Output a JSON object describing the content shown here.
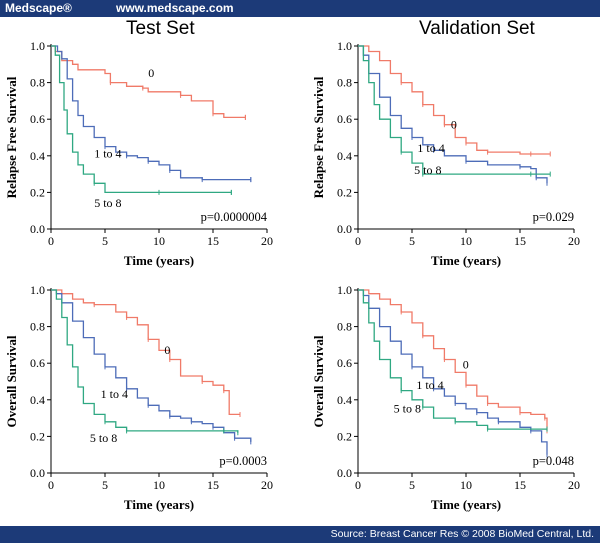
{
  "header": {
    "brand": "Medscape®",
    "site": "www.medscape.com"
  },
  "footer": {
    "source": "Source: Breast Cancer Res © 2008 BioMed Central, Ltd."
  },
  "columns": {
    "left": "Test Set",
    "right": "Validation Set"
  },
  "colors": {
    "header_bg": "#1c3a78",
    "group_0": "#f07a68",
    "group_1to4": "#4d6cb8",
    "group_5to8": "#2fa882"
  },
  "chart_data": [
    {
      "id": "test-rfs",
      "type": "line",
      "title": "Test Set",
      "xlabel": "Time (years)",
      "ylabel": "Relapse Free Survival",
      "xlim": [
        0,
        20
      ],
      "ylim": [
        0,
        1
      ],
      "xticks": [
        "0",
        "5",
        "10",
        "15",
        "20"
      ],
      "yticks": [
        "0.0",
        "0.2",
        "0.4",
        "0.6",
        "0.8",
        "1.0"
      ],
      "pvalue": "p=0.0000004",
      "series": [
        {
          "name": "0",
          "label_at": [
            9,
            0.83
          ],
          "points": [
            [
              0,
              1
            ],
            [
              0.4,
              0.97
            ],
            [
              1,
              0.92
            ],
            [
              2,
              0.9
            ],
            [
              2.5,
              0.87
            ],
            [
              5,
              0.85
            ],
            [
              5.5,
              0.8
            ],
            [
              7,
              0.78
            ],
            [
              8.5,
              0.77
            ],
            [
              9,
              0.75
            ],
            [
              12,
              0.73
            ],
            [
              13,
              0.7
            ],
            [
              15,
              0.63
            ],
            [
              16,
              0.61
            ],
            [
              18,
              0.61
            ]
          ]
        },
        {
          "name": "1 to 4",
          "label_at": [
            4,
            0.39
          ],
          "points": [
            [
              0,
              1
            ],
            [
              0.6,
              0.97
            ],
            [
              1,
              0.93
            ],
            [
              1.5,
              0.82
            ],
            [
              2,
              0.7
            ],
            [
              2.5,
              0.62
            ],
            [
              3,
              0.56
            ],
            [
              4,
              0.5
            ],
            [
              5,
              0.45
            ],
            [
              6,
              0.42
            ],
            [
              7,
              0.4
            ],
            [
              8,
              0.39
            ],
            [
              9,
              0.37
            ],
            [
              10,
              0.35
            ],
            [
              11,
              0.32
            ],
            [
              12,
              0.28
            ],
            [
              14,
              0.27
            ],
            [
              16,
              0.27
            ],
            [
              18.5,
              0.27
            ]
          ]
        },
        {
          "name": "5 to 8",
          "label_at": [
            4,
            0.12
          ],
          "points": [
            [
              0,
              1
            ],
            [
              0.4,
              0.95
            ],
            [
              0.8,
              0.8
            ],
            [
              1.2,
              0.65
            ],
            [
              1.5,
              0.52
            ],
            [
              2,
              0.42
            ],
            [
              2.5,
              0.35
            ],
            [
              3,
              0.3
            ],
            [
              4,
              0.25
            ],
            [
              5,
              0.2
            ],
            [
              10,
              0.2
            ],
            [
              15,
              0.2
            ],
            [
              16.7,
              0.2
            ]
          ]
        }
      ]
    },
    {
      "id": "val-rfs",
      "type": "line",
      "title": "Validation Set",
      "xlabel": "Time (years)",
      "ylabel": "Relapse Free Survival",
      "xlim": [
        0,
        20
      ],
      "ylim": [
        0,
        1
      ],
      "xticks": [
        "0",
        "5",
        "10",
        "15",
        "20"
      ],
      "yticks": [
        "0.0",
        "0.2",
        "0.4",
        "0.6",
        "0.8",
        "1.0"
      ],
      "pvalue": "p=0.029",
      "series": [
        {
          "name": "0",
          "label_at": [
            8.6,
            0.55
          ],
          "points": [
            [
              0,
              1
            ],
            [
              1,
              0.97
            ],
            [
              2,
              0.92
            ],
            [
              3,
              0.85
            ],
            [
              4,
              0.8
            ],
            [
              5,
              0.75
            ],
            [
              6,
              0.68
            ],
            [
              7,
              0.62
            ],
            [
              8,
              0.57
            ],
            [
              9,
              0.5
            ],
            [
              10,
              0.47
            ],
            [
              11,
              0.43
            ],
            [
              12,
              0.42
            ],
            [
              15,
              0.41
            ],
            [
              16,
              0.41
            ],
            [
              17.8,
              0.41
            ]
          ]
        },
        {
          "name": "1 to 4",
          "label_at": [
            5.5,
            0.42
          ],
          "points": [
            [
              0,
              1
            ],
            [
              0.5,
              0.95
            ],
            [
              1,
              0.85
            ],
            [
              2,
              0.72
            ],
            [
              3,
              0.62
            ],
            [
              4,
              0.55
            ],
            [
              5,
              0.5
            ],
            [
              6,
              0.46
            ],
            [
              7,
              0.43
            ],
            [
              8,
              0.4
            ],
            [
              10,
              0.37
            ],
            [
              12,
              0.35
            ],
            [
              15,
              0.34
            ],
            [
              16,
              0.33
            ],
            [
              16.5,
              0.28
            ],
            [
              17.5,
              0.25
            ]
          ]
        },
        {
          "name": "5 to 8",
          "label_at": [
            5.2,
            0.3
          ],
          "points": [
            [
              0,
              1
            ],
            [
              0.5,
              0.92
            ],
            [
              1,
              0.8
            ],
            [
              1.5,
              0.68
            ],
            [
              2,
              0.6
            ],
            [
              3,
              0.5
            ],
            [
              4,
              0.42
            ],
            [
              5,
              0.36
            ],
            [
              6,
              0.3
            ],
            [
              10,
              0.3
            ],
            [
              16,
              0.3
            ],
            [
              17.8,
              0.3
            ]
          ]
        }
      ]
    },
    {
      "id": "test-os",
      "type": "line",
      "title": "Test Set",
      "xlabel": "Time (years)",
      "ylabel": "Overall Survival",
      "xlim": [
        0,
        20
      ],
      "ylim": [
        0,
        1
      ],
      "xticks": [
        "0",
        "5",
        "10",
        "15",
        "20"
      ],
      "yticks": [
        "0.0",
        "0.2",
        "0.4",
        "0.6",
        "0.8",
        "1.0"
      ],
      "pvalue": "p=0.0003",
      "series": [
        {
          "name": "0",
          "label_at": [
            10.5,
            0.65
          ],
          "points": [
            [
              0,
              1
            ],
            [
              1,
              0.98
            ],
            [
              2,
              0.95
            ],
            [
              3,
              0.93
            ],
            [
              4,
              0.92
            ],
            [
              6,
              0.88
            ],
            [
              7,
              0.85
            ],
            [
              8,
              0.81
            ],
            [
              9,
              0.73
            ],
            [
              10,
              0.67
            ],
            [
              11,
              0.62
            ],
            [
              12,
              0.53
            ],
            [
              14,
              0.5
            ],
            [
              15,
              0.48
            ],
            [
              16,
              0.45
            ],
            [
              16.5,
              0.32
            ],
            [
              17.5,
              0.32
            ]
          ]
        },
        {
          "name": "1 to 4",
          "label_at": [
            4.6,
            0.41
          ],
          "points": [
            [
              0,
              1
            ],
            [
              0.5,
              0.98
            ],
            [
              1,
              0.93
            ],
            [
              2,
              0.83
            ],
            [
              3,
              0.74
            ],
            [
              4,
              0.65
            ],
            [
              5,
              0.58
            ],
            [
              6,
              0.52
            ],
            [
              7,
              0.46
            ],
            [
              8,
              0.41
            ],
            [
              9,
              0.37
            ],
            [
              10,
              0.34
            ],
            [
              11,
              0.31
            ],
            [
              12,
              0.3
            ],
            [
              13,
              0.28
            ],
            [
              14,
              0.27
            ],
            [
              15,
              0.25
            ],
            [
              16,
              0.22
            ],
            [
              17,
              0.19
            ],
            [
              18.5,
              0.17
            ]
          ]
        },
        {
          "name": "5 to 8",
          "label_at": [
            3.6,
            0.17
          ],
          "points": [
            [
              0,
              1
            ],
            [
              0.5,
              0.95
            ],
            [
              1,
              0.85
            ],
            [
              1.5,
              0.7
            ],
            [
              2,
              0.58
            ],
            [
              2.5,
              0.47
            ],
            [
              3,
              0.38
            ],
            [
              4,
              0.32
            ],
            [
              5,
              0.28
            ],
            [
              6,
              0.25
            ],
            [
              7,
              0.23
            ],
            [
              15,
              0.23
            ],
            [
              16,
              0.23
            ],
            [
              17.3,
              0.22
            ]
          ]
        }
      ]
    },
    {
      "id": "val-os",
      "type": "line",
      "title": "Validation Set",
      "xlabel": "Time (years)",
      "ylabel": "Overall Survival",
      "xlim": [
        0,
        20
      ],
      "ylim": [
        0,
        1
      ],
      "xticks": [
        "0",
        "5",
        "10",
        "15",
        "20"
      ],
      "yticks": [
        "0.0",
        "0.2",
        "0.4",
        "0.6",
        "0.8",
        "1.0"
      ],
      "pvalue": "p=0.048",
      "series": [
        {
          "name": "0",
          "label_at": [
            9.7,
            0.57
          ],
          "points": [
            [
              0,
              1
            ],
            [
              1,
              0.98
            ],
            [
              2,
              0.95
            ],
            [
              3,
              0.92
            ],
            [
              4,
              0.88
            ],
            [
              5,
              0.82
            ],
            [
              6,
              0.75
            ],
            [
              7,
              0.68
            ],
            [
              8,
              0.62
            ],
            [
              9,
              0.55
            ],
            [
              10,
              0.48
            ],
            [
              11,
              0.42
            ],
            [
              12,
              0.38
            ],
            [
              13,
              0.36
            ],
            [
              15,
              0.33
            ],
            [
              16,
              0.32
            ],
            [
              17.3,
              0.3
            ],
            [
              17.5,
              0.23
            ]
          ]
        },
        {
          "name": "1 to 4",
          "label_at": [
            5.4,
            0.46
          ],
          "points": [
            [
              0,
              1
            ],
            [
              0.5,
              0.97
            ],
            [
              1,
              0.9
            ],
            [
              2,
              0.8
            ],
            [
              3,
              0.72
            ],
            [
              4,
              0.65
            ],
            [
              5,
              0.58
            ],
            [
              6,
              0.52
            ],
            [
              7,
              0.46
            ],
            [
              8,
              0.42
            ],
            [
              9,
              0.38
            ],
            [
              10,
              0.35
            ],
            [
              11,
              0.33
            ],
            [
              12,
              0.3
            ],
            [
              13,
              0.28
            ],
            [
              15,
              0.25
            ],
            [
              16,
              0.23
            ],
            [
              17,
              0.17
            ],
            [
              17.5,
              0.1
            ]
          ]
        },
        {
          "name": "5 to 8",
          "label_at": [
            3.3,
            0.33
          ],
          "points": [
            [
              0,
              1
            ],
            [
              0.5,
              0.93
            ],
            [
              1,
              0.82
            ],
            [
              1.5,
              0.72
            ],
            [
              2,
              0.62
            ],
            [
              3,
              0.52
            ],
            [
              4,
              0.45
            ],
            [
              5,
              0.4
            ],
            [
              6,
              0.36
            ],
            [
              7,
              0.3
            ],
            [
              9,
              0.28
            ],
            [
              11,
              0.26
            ],
            [
              12,
              0.24
            ],
            [
              15,
              0.24
            ],
            [
              17.5,
              0.24
            ]
          ]
        }
      ]
    }
  ]
}
